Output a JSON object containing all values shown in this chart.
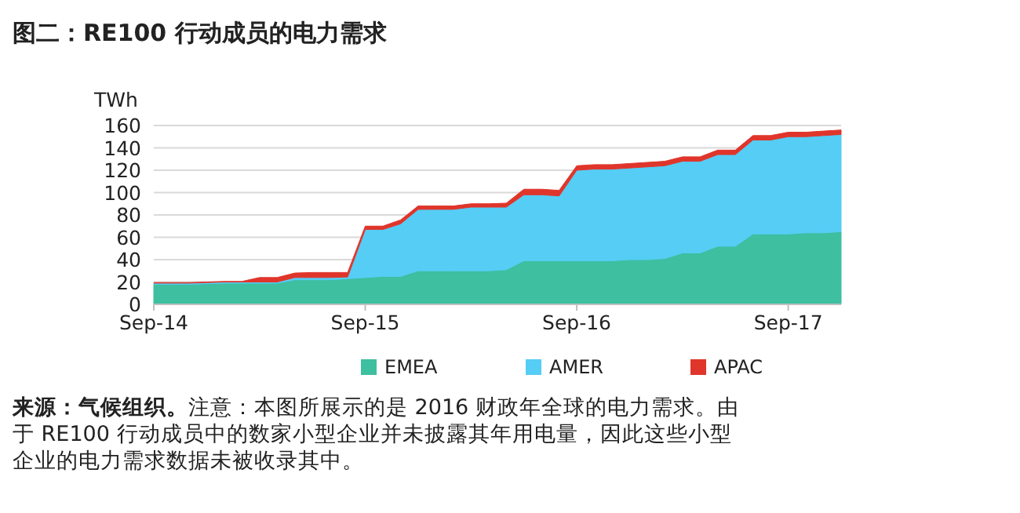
{
  "chart_data": {
    "type": "area",
    "stacked": true,
    "title": "图二：RE100 行动成员的电力需求",
    "ylabel": "TWh",
    "annotations": [
      "**来源：气候组织。**注意：本图所展示的是 2016 财政年全球的电力需求。由于 RE100 行动成员中的数家小型企业并未披露其年用电量，因此这些小型企业的电力需求数据未被收录其中。"
    ],
    "x": [
      "2014-09",
      "2014-10",
      "2014-11",
      "2014-12",
      "2015-01",
      "2015-02",
      "2015-03",
      "2015-04",
      "2015-05",
      "2015-06",
      "2015-07",
      "2015-08",
      "2015-09",
      "2015-10",
      "2015-11",
      "2015-12",
      "2016-01",
      "2016-02",
      "2016-03",
      "2016-04",
      "2016-05",
      "2016-06",
      "2016-07",
      "2016-08",
      "2016-09",
      "2016-10",
      "2016-11",
      "2016-12",
      "2017-01",
      "2017-02",
      "2017-03",
      "2017-04",
      "2017-05",
      "2017-06",
      "2017-07",
      "2017-08",
      "2017-09",
      "2017-10",
      "2017-11",
      "2017-12"
    ],
    "series": [
      {
        "name": "EMEA",
        "color": "#3dbfa0",
        "values": [
          18,
          18,
          18,
          18.5,
          19,
          19,
          19,
          19,
          22,
          22,
          22,
          23,
          24,
          25,
          25,
          30,
          30,
          30,
          30,
          30,
          31,
          39,
          39,
          39,
          39,
          39,
          39,
          40,
          40,
          41,
          46,
          46,
          52,
          52,
          63,
          63,
          63,
          64,
          64,
          65
        ]
      },
      {
        "name": "AMER",
        "color": "#55cdf5",
        "values": [
          1,
          1,
          1,
          1,
          1,
          1,
          1,
          1,
          2,
          2,
          2,
          1.5,
          43,
          42,
          47,
          55,
          55,
          55,
          57,
          57,
          56,
          59,
          59,
          58,
          81,
          82,
          82,
          82,
          83,
          83,
          82,
          82,
          82,
          82,
          84,
          84,
          87,
          86,
          87,
          87
        ]
      },
      {
        "name": "APAC",
        "color": "#e0352b",
        "values": [
          0.5,
          0.5,
          0.5,
          0.5,
          0.5,
          0.5,
          4,
          4,
          4,
          4.5,
          4.5,
          4,
          3,
          3,
          3.5,
          3,
          3,
          3,
          3,
          3,
          3.5,
          5,
          5,
          5,
          4,
          4,
          4,
          4,
          4,
          4,
          4,
          4,
          4,
          4,
          4,
          4,
          4,
          4,
          4,
          4
        ]
      }
    ],
    "xlim": [
      "2014-09",
      "2017-12"
    ],
    "xticks": [
      {
        "value": "2014-09",
        "label": "Sep-14"
      },
      {
        "value": "2015-09",
        "label": "Sep-15"
      },
      {
        "value": "2016-09",
        "label": "Sep-16"
      },
      {
        "value": "2017-09",
        "label": "Sep-17"
      }
    ],
    "ylim": [
      0,
      160
    ],
    "yticks": [
      0,
      20,
      40,
      60,
      80,
      100,
      120,
      140,
      160
    ],
    "grid": "y",
    "legend": "bottom"
  }
}
